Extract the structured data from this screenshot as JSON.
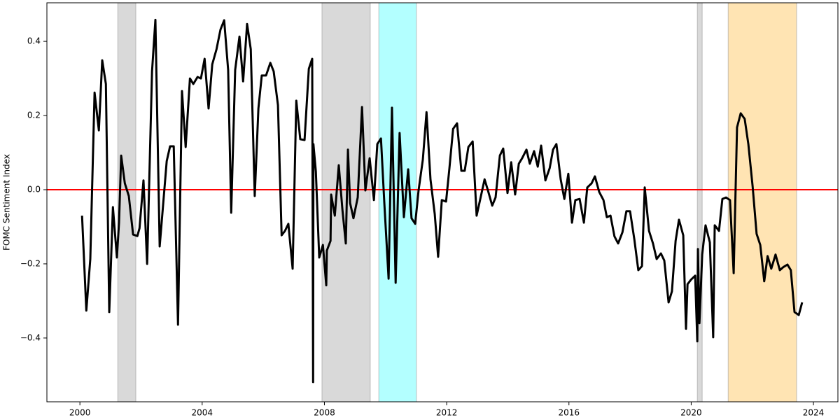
{
  "chart_data": {
    "type": "line",
    "y_label": "FOMC Sentiment Index",
    "xlim": [
      1998.92,
      2024.8
    ],
    "ylim": [
      -0.572,
      0.504
    ],
    "xticks": [
      2000,
      2004,
      2008,
      2012,
      2016,
      2020,
      2024
    ],
    "yticks": [
      {
        "value": -0.4,
        "label": "−0.4"
      },
      {
        "value": -0.2,
        "label": "−0.2"
      },
      {
        "value": 0,
        "label": "0.0"
      },
      0.2,
      0.4
    ],
    "hline": 0,
    "hline_color": "#ff0000",
    "bands": [
      {
        "start": 2001.24,
        "end": 2001.83,
        "color": "#d9d9d9"
      },
      {
        "start": 2007.92,
        "end": 2009.5,
        "color": "#d9d9d9"
      },
      {
        "start": 2009.78,
        "end": 2011.01,
        "color": "#b3ffff"
      },
      {
        "start": 2020.2,
        "end": 2020.36,
        "color": "#d9d9d9"
      },
      {
        "start": 2021.21,
        "end": 2023.45,
        "color": "#ffe4b3"
      }
    ],
    "series": [
      {
        "color": "#000000",
        "x": [
          2000.07,
          2000.21,
          2000.34,
          2000.48,
          2000.62,
          2000.73,
          2000.85,
          2000.96,
          2001.08,
          2001.21,
          2001.28,
          2001.35,
          2001.47,
          2001.6,
          2001.74,
          2001.88,
          2001.95,
          2002.08,
          2002.2,
          2002.36,
          2002.47,
          2002.61,
          2002.84,
          2002.95,
          2003.07,
          2003.21,
          2003.34,
          2003.46,
          2003.6,
          2003.71,
          2003.85,
          2003.96,
          2004.08,
          2004.21,
          2004.33,
          2004.47,
          2004.6,
          2004.72,
          2004.85,
          2004.95,
          2005.08,
          2005.22,
          2005.34,
          2005.47,
          2005.59,
          2005.72,
          2005.84,
          2005.95,
          2006.09,
          2006.23,
          2006.34,
          2006.48,
          2006.6,
          2006.71,
          2006.82,
          2006.96,
          2007.08,
          2007.21,
          2007.35,
          2007.49,
          2007.6,
          2007.63,
          2007.64,
          2007.72,
          2007.83,
          2007.95,
          2008.06,
          2008.08,
          2008.2,
          2008.22,
          2008.34,
          2008.47,
          2008.59,
          2008.7,
          2008.77,
          2008.84,
          2008.95,
          2009.09,
          2009.23,
          2009.34,
          2009.48,
          2009.62,
          2009.73,
          2009.85,
          2009.96,
          2010.1,
          2010.21,
          2010.33,
          2010.46,
          2010.6,
          2010.74,
          2010.85,
          2010.97,
          2011.08,
          2011.22,
          2011.34,
          2011.47,
          2011.61,
          2011.72,
          2011.84,
          2011.98,
          2012.09,
          2012.21,
          2012.34,
          2012.48,
          2012.59,
          2012.71,
          2012.85,
          2012.98,
          2013.1,
          2013.24,
          2013.35,
          2013.49,
          2013.6,
          2013.74,
          2013.85,
          2013.99,
          2014.11,
          2014.24,
          2014.36,
          2014.47,
          2014.61,
          2014.72,
          2014.86,
          2014.98,
          2015.09,
          2015.23,
          2015.37,
          2015.48,
          2015.59,
          2015.73,
          2015.85,
          2015.98,
          2016.1,
          2016.21,
          2016.35,
          2016.49,
          2016.6,
          2016.74,
          2016.85,
          2016.99,
          2017.13,
          2017.24,
          2017.36,
          2017.49,
          2017.61,
          2017.75,
          2017.88,
          2018.0,
          2018.14,
          2018.27,
          2018.39,
          2018.48,
          2018.62,
          2018.75,
          2018.87,
          2019.01,
          2019.12,
          2019.26,
          2019.37,
          2019.49,
          2019.6,
          2019.74,
          2019.83,
          2019.88,
          2019.99,
          2020.13,
          2020.2,
          2020.22,
          2020.27,
          2020.36,
          2020.47,
          2020.61,
          2020.72,
          2020.77,
          2020.91,
          2021.02,
          2021.14,
          2021.27,
          2021.39,
          2021.5,
          2021.62,
          2021.75,
          2021.87,
          2022.01,
          2022.14,
          2022.26,
          2022.39,
          2022.5,
          2022.62,
          2022.76,
          2022.9,
          2023.01,
          2023.15,
          2023.26,
          2023.38,
          2023.52,
          2023.63
        ],
        "values": [
          -0.07,
          -0.326,
          -0.187,
          0.262,
          0.16,
          0.349,
          0.285,
          -0.33,
          -0.047,
          -0.183,
          -0.089,
          0.092,
          0.017,
          -0.017,
          -0.121,
          -0.125,
          -0.104,
          0.025,
          -0.2,
          0.319,
          0.458,
          -0.153,
          0.077,
          0.117,
          0.117,
          -0.364,
          0.266,
          0.115,
          0.3,
          0.285,
          0.304,
          0.3,
          0.353,
          0.219,
          0.338,
          0.379,
          0.432,
          0.457,
          0.323,
          -0.062,
          0.323,
          0.413,
          0.292,
          0.447,
          0.379,
          -0.017,
          0.219,
          0.308,
          0.308,
          0.342,
          0.319,
          0.228,
          -0.123,
          -0.111,
          -0.092,
          -0.213,
          0.24,
          0.136,
          0.134,
          0.326,
          0.353,
          -0.519,
          0.123,
          0.049,
          -0.183,
          -0.149,
          -0.258,
          -0.164,
          -0.138,
          -0.013,
          -0.07,
          0.066,
          -0.055,
          -0.145,
          0.108,
          -0.036,
          -0.077,
          -0.021,
          0.223,
          -0.002,
          0.085,
          -0.028,
          0.123,
          0.138,
          -0.036,
          -0.24,
          0.221,
          -0.251,
          0.153,
          -0.074,
          0.055,
          -0.077,
          -0.092,
          -0.002,
          0.081,
          0.209,
          0.028,
          -0.066,
          -0.181,
          -0.028,
          -0.032,
          0.058,
          0.164,
          0.179,
          0.051,
          0.051,
          0.115,
          0.13,
          -0.07,
          -0.025,
          0.028,
          -0.002,
          -0.043,
          -0.021,
          0.092,
          0.111,
          -0.009,
          0.074,
          -0.013,
          0.07,
          0.085,
          0.108,
          0.07,
          0.104,
          0.062,
          0.119,
          0.025,
          0.058,
          0.108,
          0.123,
          0.028,
          -0.025,
          0.043,
          -0.089,
          -0.028,
          -0.025,
          -0.089,
          0.006,
          0.017,
          0.036,
          -0.006,
          -0.028,
          -0.074,
          -0.07,
          -0.126,
          -0.145,
          -0.115,
          -0.058,
          -0.058,
          -0.134,
          -0.217,
          -0.206,
          0.006,
          -0.111,
          -0.145,
          -0.187,
          -0.172,
          -0.191,
          -0.304,
          -0.274,
          -0.138,
          -0.081,
          -0.123,
          -0.375,
          -0.255,
          -0.243,
          -0.232,
          -0.409,
          -0.16,
          -0.36,
          -0.175,
          -0.096,
          -0.142,
          -0.398,
          -0.096,
          -0.111,
          -0.025,
          -0.021,
          -0.028,
          -0.225,
          0.168,
          0.206,
          0.191,
          0.123,
          0.009,
          -0.119,
          -0.149,
          -0.247,
          -0.179,
          -0.213,
          -0.175,
          -0.217,
          -0.209,
          -0.202,
          -0.217,
          -0.33,
          -0.338,
          -0.304
        ]
      }
    ]
  }
}
